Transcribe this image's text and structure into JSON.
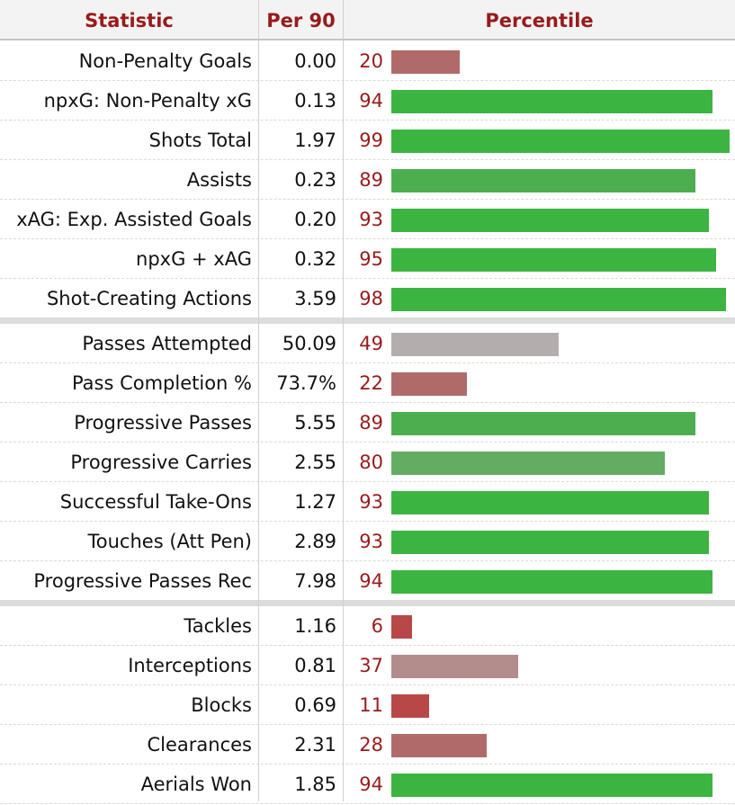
{
  "headers": {
    "statistic": "Statistic",
    "per90": "Per 90",
    "percentile": "Percentile"
  },
  "colors": {
    "header_text": "#991b1b",
    "percentile_text": "#991b1b",
    "high": "#3cb441",
    "above_avg": "#4cae4f",
    "good": "#63ad62",
    "average": "#b3adad",
    "below_avg": "#b38c8c",
    "low": "#b06a6a",
    "very_low": "#b84848"
  },
  "chart_data": {
    "type": "bar",
    "orientation": "horizontal",
    "xlim": [
      0,
      100
    ],
    "groups": [
      {
        "rows": [
          {
            "stat": "Non-Penalty Goals",
            "per90": "0.00",
            "percentile": 20,
            "color": "#b06a6a"
          },
          {
            "stat": "npxG: Non-Penalty xG",
            "per90": "0.13",
            "percentile": 94,
            "color": "#3cb441"
          },
          {
            "stat": "Shots Total",
            "per90": "1.97",
            "percentile": 99,
            "color": "#3cb441"
          },
          {
            "stat": "Assists",
            "per90": "0.23",
            "percentile": 89,
            "color": "#4cae4f"
          },
          {
            "stat": "xAG: Exp. Assisted Goals",
            "per90": "0.20",
            "percentile": 93,
            "color": "#3cb441"
          },
          {
            "stat": "npxG + xAG",
            "per90": "0.32",
            "percentile": 95,
            "color": "#3cb441"
          },
          {
            "stat": "Shot-Creating Actions",
            "per90": "3.59",
            "percentile": 98,
            "color": "#3cb441"
          }
        ]
      },
      {
        "rows": [
          {
            "stat": "Passes Attempted",
            "per90": "50.09",
            "percentile": 49,
            "color": "#b3adad"
          },
          {
            "stat": "Pass Completion %",
            "per90": "73.7%",
            "percentile": 22,
            "color": "#b06a6a"
          },
          {
            "stat": "Progressive Passes",
            "per90": "5.55",
            "percentile": 89,
            "color": "#4cae4f"
          },
          {
            "stat": "Progressive Carries",
            "per90": "2.55",
            "percentile": 80,
            "color": "#63ad62"
          },
          {
            "stat": "Successful Take-Ons",
            "per90": "1.27",
            "percentile": 93,
            "color": "#3cb441"
          },
          {
            "stat": "Touches (Att Pen)",
            "per90": "2.89",
            "percentile": 93,
            "color": "#3cb441"
          },
          {
            "stat": "Progressive Passes Rec",
            "per90": "7.98",
            "percentile": 94,
            "color": "#3cb441"
          }
        ]
      },
      {
        "rows": [
          {
            "stat": "Tackles",
            "per90": "1.16",
            "percentile": 6,
            "color": "#b84848"
          },
          {
            "stat": "Interceptions",
            "per90": "0.81",
            "percentile": 37,
            "color": "#b38c8c"
          },
          {
            "stat": "Blocks",
            "per90": "0.69",
            "percentile": 11,
            "color": "#b84848"
          },
          {
            "stat": "Clearances",
            "per90": "2.31",
            "percentile": 28,
            "color": "#b06a6a"
          },
          {
            "stat": "Aerials Won",
            "per90": "1.85",
            "percentile": 94,
            "color": "#3cb441"
          }
        ]
      }
    ]
  }
}
